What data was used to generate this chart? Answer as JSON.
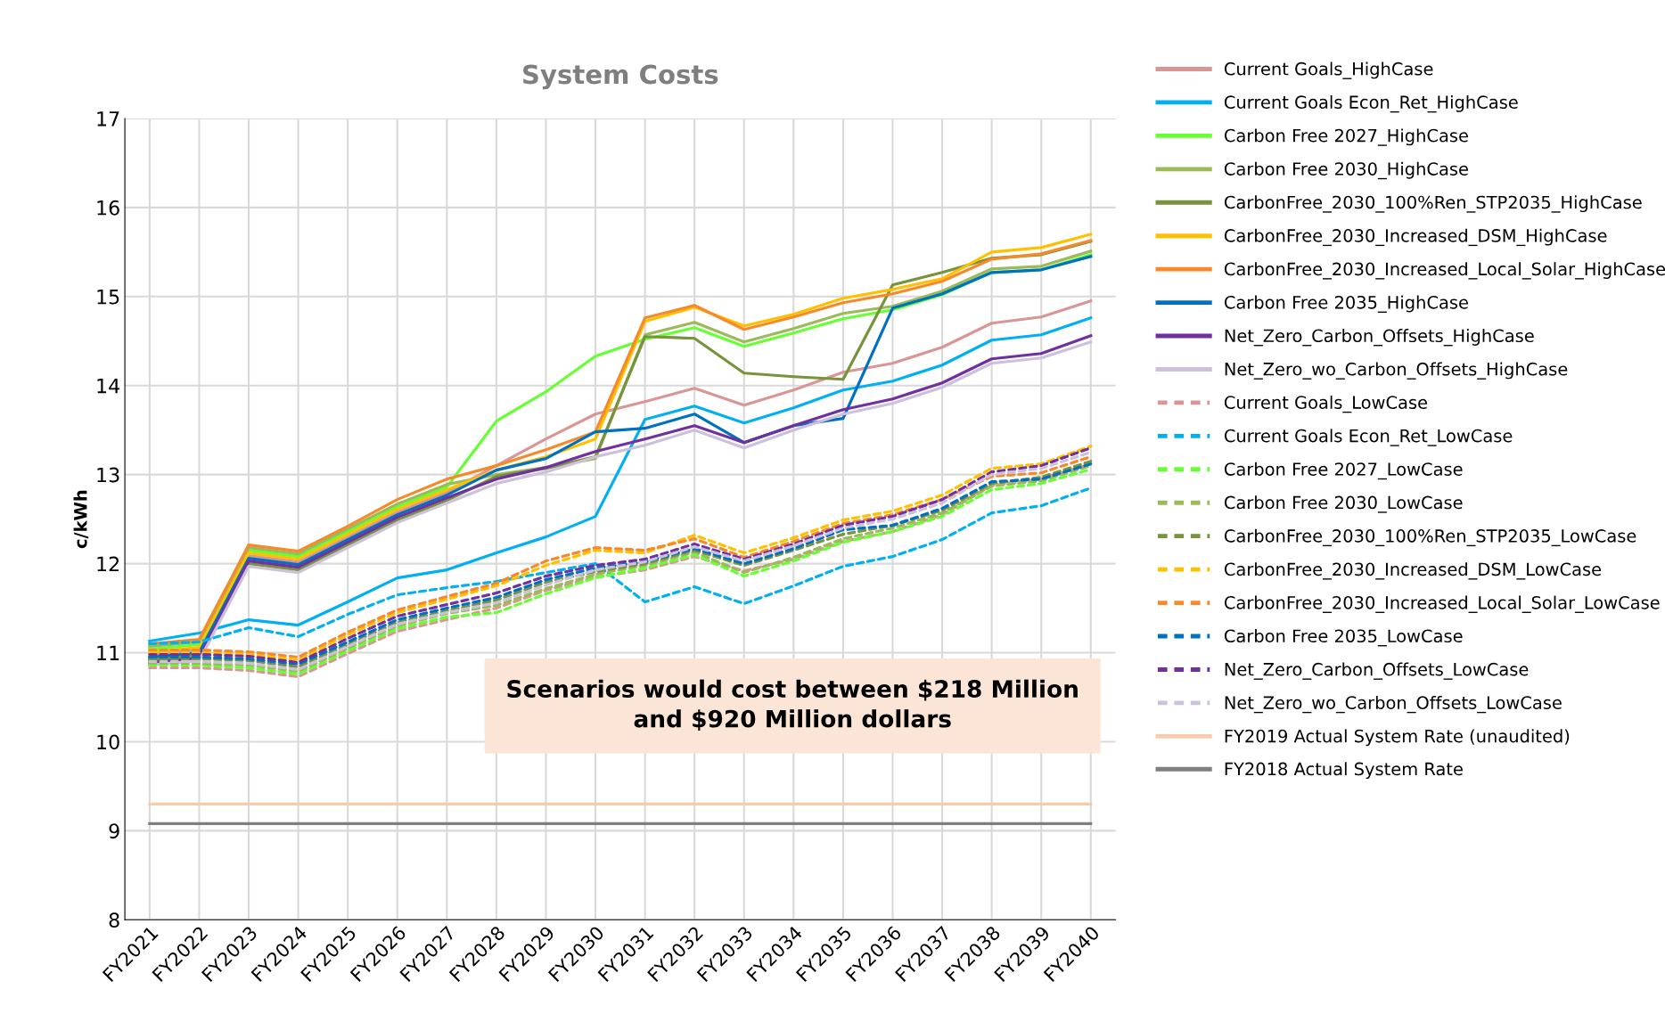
{
  "chart_data": {
    "type": "line",
    "title": "System Costs",
    "ylabel": "c/kWh",
    "categories": [
      "FY2021",
      "FY2022",
      "FY2023",
      "FY2024",
      "FY2025",
      "FY2026",
      "FY2027",
      "FY2028",
      "FY2029",
      "FY2030",
      "FY2031",
      "FY2032",
      "FY2033",
      "FY2034",
      "FY2035",
      "FY2036",
      "FY2037",
      "FY2038",
      "FY2039",
      "FY2040"
    ],
    "ylim": [
      8,
      17
    ],
    "yticks": [
      8,
      9,
      10,
      11,
      12,
      13,
      14,
      15,
      16,
      17
    ],
    "grid": true,
    "legend": "right",
    "marker": "none",
    "annotations": [
      "Scenarios would cost between $218 Million\nand $920 Million dollars"
    ],
    "series": [
      {
        "name": "Current Goals_HighCase",
        "color": "#d99694",
        "line_style": "solid",
        "values": [
          10.98,
          11.03,
          12.09,
          12.02,
          12.3,
          12.58,
          12.8,
          13.1,
          13.4,
          13.68,
          13.82,
          13.97,
          13.78,
          13.95,
          14.15,
          14.25,
          14.43,
          14.7,
          14.77,
          14.95
        ]
      },
      {
        "name": "Current Goals Econ_Ret_HighCase",
        "color": "#00b0f0",
        "line_style": "solid",
        "values": [
          11.13,
          11.22,
          11.37,
          11.31,
          11.57,
          11.84,
          11.93,
          12.12,
          12.3,
          12.53,
          13.62,
          13.77,
          13.58,
          13.75,
          13.95,
          14.05,
          14.23,
          14.51,
          14.57,
          14.76
        ]
      },
      {
        "name": "Carbon Free 2027_HighCase",
        "color": "#66ff33",
        "line_style": "solid",
        "values": [
          11.04,
          11.09,
          12.15,
          12.08,
          12.36,
          12.64,
          12.86,
          13.6,
          13.93,
          14.33,
          14.52,
          14.65,
          14.44,
          14.59,
          14.75,
          14.85,
          15.02,
          15.27,
          15.3,
          15.47
        ]
      },
      {
        "name": "Carbon Free 2030_HighCase",
        "color": "#9bbb59",
        "line_style": "solid",
        "values": [
          11.07,
          11.12,
          12.18,
          12.11,
          12.39,
          12.67,
          12.89,
          13.0,
          13.08,
          13.18,
          14.57,
          14.71,
          14.49,
          14.64,
          14.81,
          14.89,
          15.06,
          15.31,
          15.34,
          15.51
        ]
      },
      {
        "name": "CarbonFree_2030_100%Ren_STP2035_HighCase",
        "color": "#77933c",
        "line_style": "solid",
        "values": [
          10.92,
          10.97,
          12.0,
          11.93,
          12.21,
          12.49,
          12.71,
          12.98,
          13.07,
          13.2,
          14.55,
          14.53,
          14.14,
          14.1,
          14.07,
          15.13,
          15.27,
          15.43,
          15.47,
          15.62
        ]
      },
      {
        "name": "CarbonFree_2030_Increased_DSM_HighCase",
        "color": "#ffc000",
        "line_style": "solid",
        "values": [
          11.01,
          11.06,
          12.12,
          12.05,
          12.33,
          12.61,
          12.83,
          13.05,
          13.2,
          13.4,
          14.72,
          14.88,
          14.67,
          14.8,
          14.98,
          15.08,
          15.2,
          15.5,
          15.55,
          15.7
        ]
      },
      {
        "name": "CarbonFree_2030_Increased_Local_Solar_HighCase",
        "color": "#f58a2c",
        "line_style": "solid",
        "values": [
          11.1,
          11.15,
          12.21,
          12.14,
          12.42,
          12.72,
          12.95,
          13.1,
          13.28,
          13.48,
          14.76,
          14.9,
          14.63,
          14.77,
          14.93,
          15.03,
          15.17,
          15.42,
          15.48,
          15.63
        ]
      },
      {
        "name": "Carbon Free 2035_HighCase",
        "color": "#0070c0",
        "line_style": "solid",
        "values": [
          10.95,
          11.0,
          12.06,
          11.99,
          12.27,
          12.55,
          12.77,
          13.05,
          13.18,
          13.48,
          13.52,
          13.68,
          13.36,
          13.55,
          13.63,
          14.87,
          15.03,
          15.27,
          15.3,
          15.45
        ]
      },
      {
        "name": "Net_Zero_Carbon_Offsets_HighCase",
        "color": "#7030a0",
        "line_style": "solid",
        "values": [
          10.89,
          10.94,
          12.03,
          11.96,
          12.24,
          12.52,
          12.74,
          12.95,
          13.08,
          13.26,
          13.4,
          13.55,
          13.36,
          13.55,
          13.73,
          13.85,
          14.03,
          14.3,
          14.36,
          14.56
        ]
      },
      {
        "name": "Net_Zero_wo_Carbon_Offsets_HighCase",
        "color": "#ccc0da",
        "line_style": "solid",
        "values": [
          10.86,
          10.91,
          11.97,
          11.9,
          12.18,
          12.46,
          12.68,
          12.9,
          13.03,
          13.2,
          13.33,
          13.5,
          13.3,
          13.5,
          13.68,
          13.8,
          13.98,
          14.25,
          14.31,
          14.49
        ]
      },
      {
        "name": "Current Goals_LowCase",
        "color": "#d99694",
        "line_style": "dashed",
        "values": [
          10.83,
          10.83,
          10.8,
          10.73,
          10.99,
          11.24,
          11.37,
          11.5,
          11.7,
          11.85,
          11.93,
          12.08,
          11.92,
          12.05,
          12.25,
          12.36,
          12.55,
          12.88,
          12.95,
          13.12
        ]
      },
      {
        "name": "Current Goals Econ_Ret_LowCase",
        "color": "#00b0f0",
        "line_style": "dashed",
        "values": [
          11.1,
          11.12,
          11.28,
          11.18,
          11.43,
          11.65,
          11.73,
          11.8,
          11.9,
          12.0,
          11.57,
          11.74,
          11.55,
          11.75,
          11.97,
          12.08,
          12.27,
          12.57,
          12.65,
          12.85
        ]
      },
      {
        "name": "Carbon Free 2027_LowCase",
        "color": "#66ff33",
        "line_style": "dashed",
        "values": [
          10.86,
          10.86,
          10.83,
          10.76,
          11.02,
          11.27,
          11.4,
          11.45,
          11.66,
          11.84,
          11.95,
          12.1,
          11.86,
          12.03,
          12.24,
          12.36,
          12.53,
          12.83,
          12.9,
          13.06
        ]
      },
      {
        "name": "Carbon Free 2030_LowCase",
        "color": "#9bbb59",
        "line_style": "dashed",
        "values": [
          10.88,
          10.88,
          10.86,
          10.79,
          11.05,
          11.3,
          11.44,
          11.53,
          11.72,
          11.88,
          11.98,
          12.13,
          11.9,
          12.07,
          12.28,
          12.4,
          12.57,
          12.87,
          12.93,
          13.1
        ]
      },
      {
        "name": "CarbonFree_2030_100%Ren_STP2035_LowCase",
        "color": "#77933c",
        "line_style": "dashed",
        "values": [
          10.93,
          10.93,
          10.91,
          10.84,
          11.09,
          11.34,
          11.47,
          11.59,
          11.79,
          11.91,
          12.0,
          12.15,
          11.98,
          12.15,
          12.33,
          12.43,
          12.6,
          12.9,
          12.97,
          13.15
        ]
      },
      {
        "name": "CarbonFree_2030_Increased_DSM_LowCase",
        "color": "#ffc000",
        "line_style": "dashed",
        "values": [
          11.0,
          11.0,
          10.98,
          10.92,
          11.2,
          11.45,
          11.6,
          11.75,
          11.98,
          12.15,
          12.12,
          12.32,
          12.12,
          12.29,
          12.49,
          12.59,
          12.77,
          13.07,
          13.12,
          13.32
        ]
      },
      {
        "name": "CarbonFree_2030_Increased_Local_Solar_LowCase",
        "color": "#f58a2c",
        "line_style": "dashed",
        "values": [
          11.03,
          11.03,
          11.01,
          10.95,
          11.23,
          11.48,
          11.63,
          11.78,
          12.03,
          12.18,
          12.15,
          12.28,
          12.07,
          12.25,
          12.45,
          12.55,
          12.72,
          12.98,
          13.02,
          13.2
        ]
      },
      {
        "name": "Carbon Free 2035_LowCase",
        "color": "#0070c0",
        "line_style": "dashed",
        "values": [
          10.95,
          10.95,
          10.93,
          10.87,
          11.12,
          11.37,
          11.5,
          11.62,
          11.82,
          11.95,
          12.02,
          12.17,
          12.0,
          12.17,
          12.38,
          12.43,
          12.62,
          12.92,
          12.95,
          13.12
        ]
      },
      {
        "name": "Net_Zero_Carbon_Offsets_LowCase",
        "color": "#7030a0",
        "line_style": "dashed",
        "values": [
          10.98,
          10.98,
          10.96,
          10.89,
          11.16,
          11.41,
          11.54,
          11.67,
          11.86,
          11.98,
          12.05,
          12.22,
          12.05,
          12.22,
          12.43,
          12.53,
          12.72,
          13.03,
          13.1,
          13.3
        ]
      },
      {
        "name": "Net_Zero_wo_Carbon_Offsets_LowCase",
        "color": "#ccc0da",
        "line_style": "dashed",
        "values": [
          10.9,
          10.9,
          10.88,
          10.81,
          11.07,
          11.32,
          11.45,
          11.56,
          11.76,
          11.93,
          12.02,
          12.19,
          12.03,
          12.2,
          12.4,
          12.5,
          12.68,
          13.0,
          13.07,
          13.25
        ]
      },
      {
        "name": "FY2019 Actual System Rate (unaudited)",
        "color": "#f8cbad",
        "line_style": "solid",
        "values": [
          9.3,
          9.3,
          9.3,
          9.3,
          9.3,
          9.3,
          9.3,
          9.3,
          9.3,
          9.3,
          9.3,
          9.3,
          9.3,
          9.3,
          9.3,
          9.3,
          9.3,
          9.3,
          9.3,
          9.3
        ]
      },
      {
        "name": "FY2018 Actual System Rate",
        "color": "#7f7f7f",
        "line_style": "solid",
        "values": [
          9.08,
          9.08,
          9.08,
          9.08,
          9.08,
          9.08,
          9.08,
          9.08,
          9.08,
          9.08,
          9.08,
          9.08,
          9.08,
          9.08,
          9.08,
          9.08,
          9.08,
          9.08,
          9.08,
          9.08
        ]
      }
    ]
  }
}
